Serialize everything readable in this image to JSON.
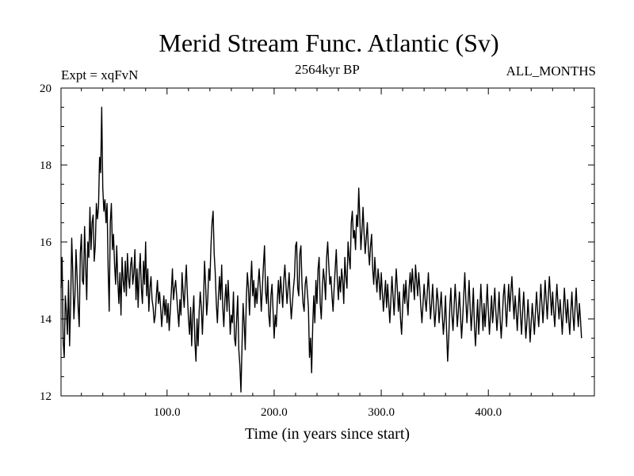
{
  "chart_data": {
    "type": "line",
    "title": "Merid Stream Func. Atlantic (Sv)",
    "subtitle_left": "Expt = xqFvN",
    "subtitle_center": "2564kyr BP",
    "subtitle_right": "ALL_MONTHS",
    "xlabel": "Time (in years since start)",
    "ylabel": "",
    "xlim": [
      1,
      499
    ],
    "ylim": [
      12,
      20
    ],
    "x_ticks": [
      100,
      200,
      300,
      400
    ],
    "x_tick_labels": [
      "100.0",
      "200.0",
      "300.0",
      "400.0"
    ],
    "y_ticks": [
      12,
      14,
      16,
      18,
      20
    ],
    "y_tick_labels": [
      "12",
      "14",
      "16",
      "18",
      "20"
    ],
    "grid": false,
    "series": [
      {
        "name": "Merid Stream Func. Atlantic",
        "color": "#000000",
        "x_start": 1,
        "x_step": 1,
        "values": [
          14.8,
          15.6,
          13.4,
          13.0,
          14.6,
          14.2,
          13.6,
          15.0,
          13.3,
          14.4,
          16.1,
          15.2,
          14.0,
          14.6,
          15.8,
          15.1,
          14.3,
          13.8,
          15.7,
          16.2,
          15.0,
          14.9,
          16.4,
          15.4,
          14.5,
          16.0,
          15.6,
          16.9,
          15.8,
          16.5,
          16.7,
          15.5,
          15.9,
          17.0,
          16.6,
          16.9,
          18.2,
          17.8,
          19.5,
          17.4,
          16.8,
          17.1,
          16.5,
          17.0,
          15.3,
          14.2,
          16.5,
          17.0,
          15.8,
          16.2,
          15.4,
          14.9,
          15.9,
          15.0,
          14.4,
          15.2,
          14.1,
          15.6,
          15.0,
          14.7,
          15.5,
          14.6,
          15.7,
          15.1,
          14.8,
          15.4,
          15.6,
          14.9,
          15.2,
          15.8,
          14.5,
          15.3,
          14.3,
          15.2,
          15.7,
          14.8,
          14.4,
          15.5,
          14.9,
          16.0,
          14.6,
          15.3,
          14.2,
          14.8,
          15.1,
          14.5,
          14.3,
          13.9,
          14.1,
          14.6,
          15.0,
          14.4,
          14.7,
          14.3,
          13.8,
          14.2,
          14.6,
          14.1,
          14.5,
          13.9,
          14.4,
          13.7,
          14.2,
          14.7,
          15.3,
          14.5,
          14.8,
          15.0,
          14.6,
          14.2,
          13.8,
          14.5,
          14.1,
          15.2,
          14.7,
          14.3,
          14.9,
          15.4,
          14.6,
          14.0,
          13.6,
          14.3,
          13.3,
          14.1,
          14.6,
          13.4,
          12.9,
          14.0,
          13.3,
          14.2,
          14.7,
          14.3,
          13.6,
          14.4,
          15.5,
          14.9,
          14.1,
          14.5,
          15.3,
          15.0,
          15.9,
          16.5,
          16.8,
          15.7,
          15.2,
          14.4,
          13.9,
          14.6,
          15.1,
          14.5,
          15.4,
          14.3,
          13.8,
          14.5,
          14.9,
          14.2,
          15.0,
          14.4,
          13.6,
          14.1,
          13.9,
          14.7,
          13.5,
          13.3,
          14.0,
          14.6,
          13.2,
          12.8,
          12.1,
          13.3,
          14.4,
          13.9,
          13.2,
          14.5,
          15.2,
          14.8,
          14.1,
          14.9,
          15.5,
          14.6,
          15.0,
          14.3,
          14.8,
          14.4,
          14.9,
          15.3,
          14.8,
          14.2,
          14.8,
          15.4,
          15.9,
          14.7,
          14.4,
          15.1,
          14.1,
          13.8,
          14.6,
          14.9,
          14.2,
          13.5,
          14.1,
          13.8,
          14.5,
          15.0,
          14.4,
          15.1,
          14.7,
          14.3,
          15.0,
          15.4,
          14.9,
          14.4,
          14.8,
          15.2,
          14.5,
          14.0,
          14.4,
          14.8,
          15.1,
          15.9,
          16.0,
          14.8,
          14.6,
          15.7,
          15.9,
          14.9,
          14.4,
          14.2,
          14.9,
          15.1,
          14.7,
          14.3,
          13.0,
          13.5,
          12.6,
          13.8,
          14.6,
          13.9,
          15.0,
          14.4,
          15.3,
          15.6,
          14.4,
          14.0,
          14.8,
          15.3,
          15.0,
          14.5,
          15.6,
          16.0,
          15.4,
          14.9,
          15.1,
          14.6,
          14.2,
          14.8,
          15.3,
          15.8,
          15.0,
          14.5,
          15.1,
          14.7,
          15.3,
          15.0,
          14.4,
          15.6,
          15.1,
          14.8,
          16.0,
          15.6,
          15.3,
          16.5,
          16.8,
          16.1,
          16.3,
          15.8,
          16.7,
          16.4,
          17.4,
          16.6,
          15.8,
          16.3,
          16.9,
          16.2,
          15.7,
          16.1,
          16.5,
          15.8,
          15.4,
          15.9,
          16.2,
          15.3,
          14.9,
          15.6,
          15.1,
          14.7,
          15.3,
          15.0,
          14.5,
          15.2,
          14.7,
          14.2,
          14.6,
          15.0,
          14.3,
          14.9,
          14.4,
          13.9,
          14.5,
          15.1,
          14.6,
          14.1,
          14.7,
          15.3,
          14.8,
          14.2,
          14.7,
          14.0,
          13.6,
          14.3,
          14.9,
          14.4,
          15.0,
          14.5,
          14.1,
          14.8,
          15.2,
          14.7,
          15.3,
          14.9,
          14.5,
          15.4,
          15.0,
          14.6,
          15.2,
          14.8,
          14.3,
          13.9,
          14.4,
          14.9,
          14.5,
          14.2,
          14.7,
          15.2,
          14.6,
          14.0,
          14.4,
          14.9,
          14.3,
          13.8,
          14.2,
          14.8,
          14.5,
          13.9,
          14.3,
          14.7,
          14.1,
          13.6,
          14.0,
          14.6,
          13.7,
          12.9,
          13.5,
          14.3,
          14.8,
          14.1,
          13.7,
          14.3,
          14.9,
          14.4,
          13.8,
          14.2,
          14.7,
          14.1,
          13.5,
          14.0,
          14.6,
          15.2,
          14.5,
          13.9,
          14.4,
          15.0,
          14.3,
          13.7,
          14.2,
          14.8,
          13.8,
          13.3,
          13.9,
          14.5,
          13.6,
          14.2,
          14.9,
          14.3,
          13.7,
          14.4,
          13.8,
          14.3,
          14.9,
          14.2,
          13.6,
          14.1,
          14.6,
          13.9,
          14.3,
          14.8,
          14.2,
          13.7,
          14.1,
          14.7,
          14.0,
          13.5,
          14.0,
          14.6,
          14.9,
          14.3,
          13.8,
          14.4,
          14.9,
          14.2,
          14.7,
          15.1,
          14.5,
          14.0,
          14.6,
          14.2,
          13.7,
          14.3,
          14.8,
          14.1,
          13.6,
          14.2,
          14.7,
          14.1,
          13.5,
          13.9,
          14.5,
          14.0,
          13.4,
          13.9,
          14.4,
          14.0,
          13.6,
          14.2,
          14.7,
          14.2,
          13.8,
          14.3,
          14.9,
          14.4,
          13.9,
          14.4,
          15.0,
          14.5,
          14.0,
          14.6,
          15.1,
          14.6,
          14.1,
          14.7,
          14.2,
          13.8,
          14.4,
          14.9,
          14.4,
          14.0,
          14.5,
          14.1,
          13.6,
          14.2,
          14.8,
          14.3,
          13.9,
          14.5,
          14.0,
          13.6,
          14.2,
          14.7,
          14.1,
          13.7,
          14.3,
          14.8,
          14.2,
          13.8,
          14.4,
          14.0,
          13.5
        ]
      }
    ]
  }
}
